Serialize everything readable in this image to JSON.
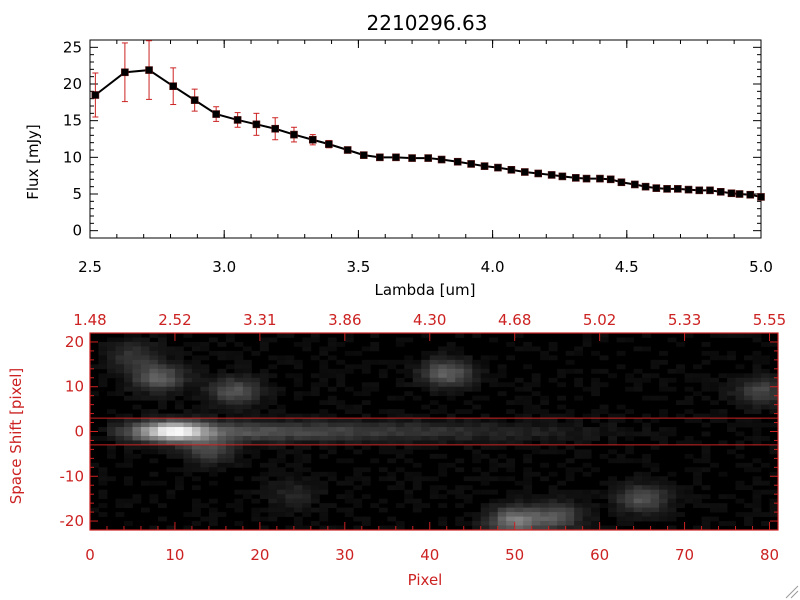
{
  "chart_data": [
    {
      "type": "line",
      "title": "2210296.63",
      "xlabel": "Lambda [um]",
      "ylabel": "Flux [mJy]",
      "xlim": [
        2.5,
        5.0
      ],
      "ylim": [
        -1,
        26
      ],
      "x_ticks": [
        "2.5",
        "3.0",
        "3.5",
        "4.0",
        "4.5",
        "5.0"
      ],
      "y_ticks": [
        "0",
        "5",
        "10",
        "15",
        "20",
        "25"
      ],
      "line_color": "#000000",
      "marker_color": "#000000",
      "errorbar_color": "#cc2222",
      "series": [
        {
          "x": [
            2.52,
            2.63,
            2.72,
            2.81,
            2.89,
            2.97,
            3.05,
            3.12,
            3.19,
            3.26,
            3.33,
            3.39,
            3.46,
            3.52,
            3.58,
            3.64,
            3.7,
            3.76,
            3.81,
            3.87,
            3.92,
            3.97,
            4.02,
            4.07,
            4.12,
            4.17,
            4.22,
            4.26,
            4.31,
            4.35,
            4.4,
            4.44,
            4.48,
            4.53,
            4.57,
            4.61,
            4.65,
            4.69,
            4.73,
            4.77,
            4.81,
            4.85,
            4.89,
            4.92,
            4.96,
            5.0
          ],
          "y": [
            18.5,
            21.6,
            21.9,
            19.7,
            17.8,
            15.9,
            15.1,
            14.5,
            13.9,
            13.1,
            12.4,
            11.8,
            11.0,
            10.3,
            10.0,
            10.0,
            9.9,
            9.9,
            9.7,
            9.4,
            9.1,
            8.8,
            8.6,
            8.3,
            8.0,
            7.8,
            7.6,
            7.4,
            7.2,
            7.1,
            7.1,
            7.0,
            6.6,
            6.3,
            6.0,
            5.8,
            5.7,
            5.7,
            5.6,
            5.5,
            5.5,
            5.3,
            5.1,
            5.0,
            4.9,
            4.6
          ],
          "yerr": [
            3.0,
            4.0,
            4.0,
            2.5,
            1.5,
            1.0,
            1.0,
            1.5,
            1.5,
            1.0,
            0.7,
            0.5,
            0.4,
            0.3,
            0.3,
            0.3,
            0.3,
            0.3,
            0.3,
            0.3,
            0.3,
            0.3,
            0.3,
            0.3,
            0.3,
            0.3,
            0.3,
            0.3,
            0.3,
            0.3,
            0.3,
            0.3,
            0.3,
            0.3,
            0.3,
            0.3,
            0.3,
            0.3,
            0.3,
            0.3,
            0.3,
            0.3,
            0.3,
            0.3,
            0.3,
            0.3
          ]
        }
      ]
    },
    {
      "type": "heatmap",
      "xlabel": "Pixel",
      "ylabel": "Space Shift [pixel]",
      "xlim": [
        0,
        81
      ],
      "ylim": [
        -22,
        22
      ],
      "x_ticks": [
        "0",
        "10",
        "20",
        "30",
        "40",
        "50",
        "60",
        "70",
        "80"
      ],
      "y_ticks": [
        "-20",
        "-10",
        "0",
        "10",
        "20"
      ],
      "top_axis_ticks": [
        "1.48",
        "2.52",
        "3.31",
        "3.86",
        "4.30",
        "4.68",
        "5.02",
        "5.33",
        "5.55"
      ],
      "axis_color": "#cc2222",
      "colormap": "grayscale",
      "extraction_window": [
        -3,
        3
      ],
      "trace": {
        "y_center": 0,
        "peak_x": 10,
        "end_x": 68
      },
      "blobs": [
        {
          "x": 8,
          "y": 12,
          "amplitude": 0.35
        },
        {
          "x": 17,
          "y": 9,
          "amplitude": 0.3
        },
        {
          "x": 14,
          "y": -4,
          "amplitude": 0.25
        },
        {
          "x": 42,
          "y": 13,
          "amplitude": 0.35
        },
        {
          "x": 79,
          "y": 9,
          "amplitude": 0.25
        },
        {
          "x": 50,
          "y": -20,
          "amplitude": 0.45
        },
        {
          "x": 55,
          "y": -19,
          "amplitude": 0.3
        },
        {
          "x": 65,
          "y": -15,
          "amplitude": 0.3
        },
        {
          "x": 5,
          "y": 17,
          "amplitude": 0.18
        },
        {
          "x": 24,
          "y": -14,
          "amplitude": 0.12
        }
      ]
    }
  ]
}
